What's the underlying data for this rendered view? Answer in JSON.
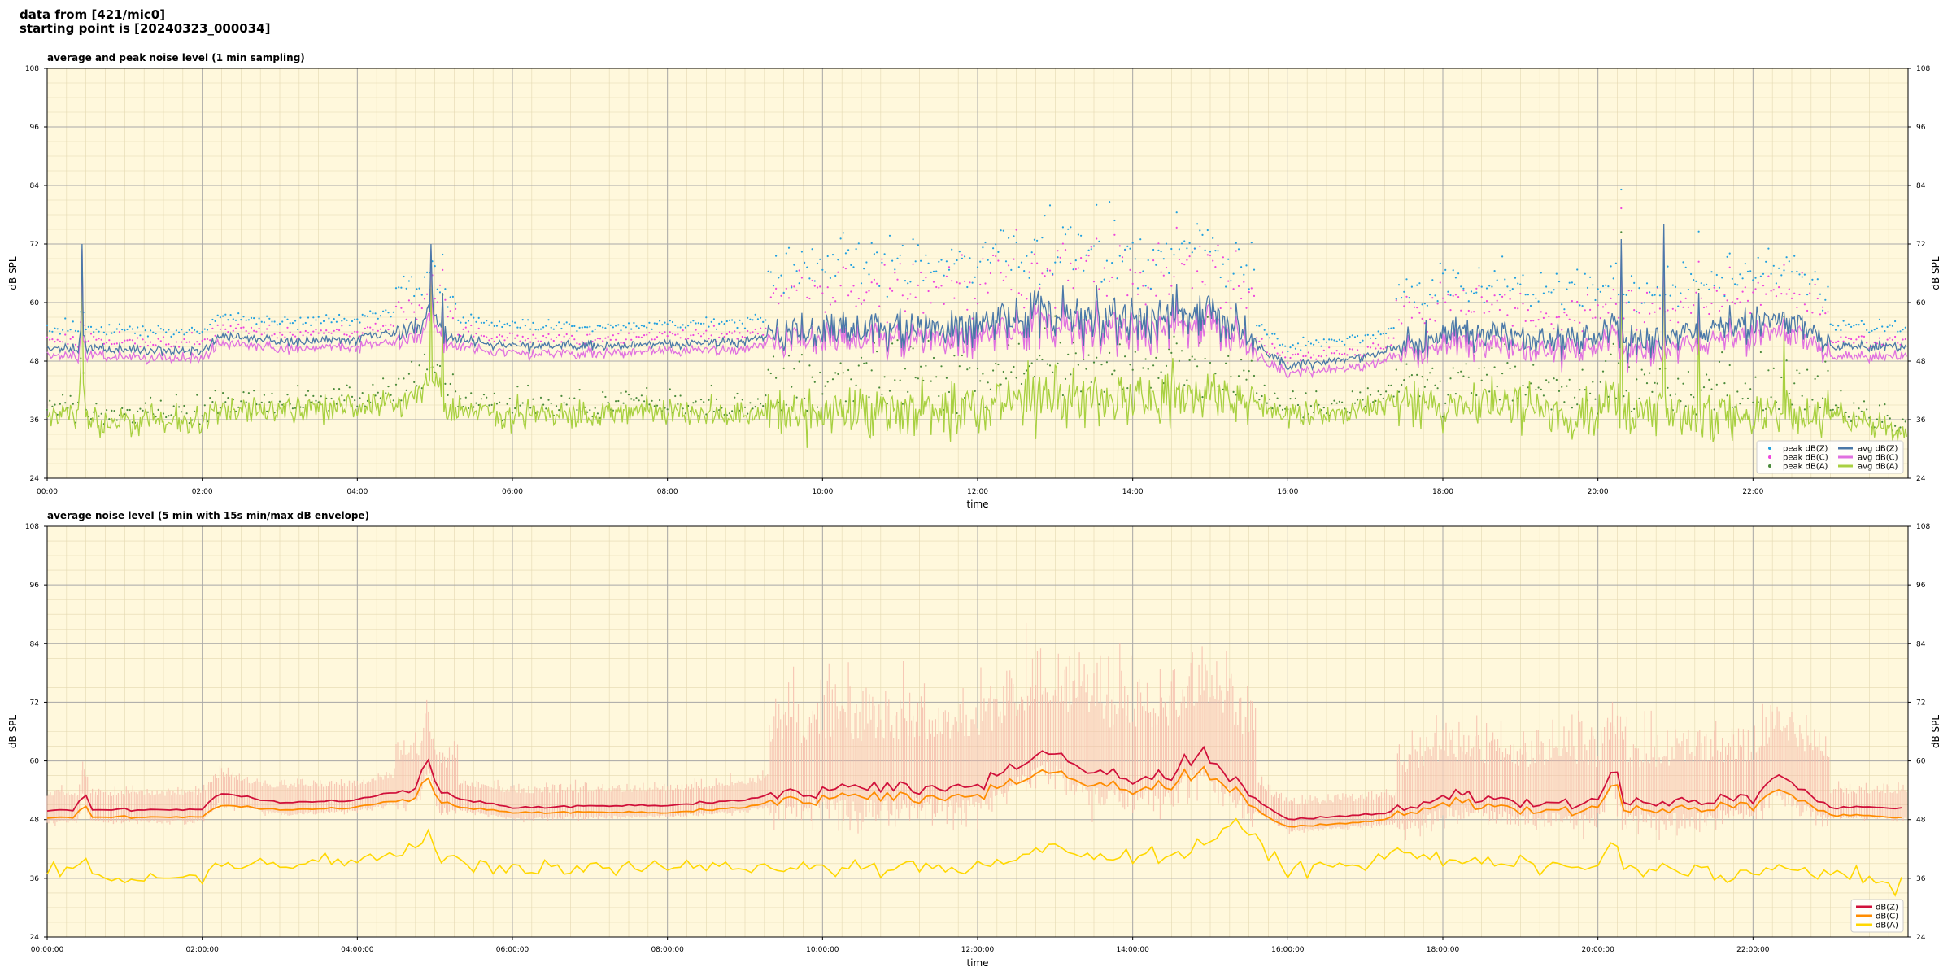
{
  "header": {
    "line1": "data from [421/mic0]",
    "line2": "starting point is [20240323_000034]"
  },
  "colors": {
    "plot_background": "#fff8dc",
    "peak_z": "#1f9fdf",
    "peak_c": "#ee44dd",
    "peak_a": "#4a8a3a",
    "avg_z": "#4a78a8",
    "avg_c": "#e070e0",
    "avg_a": "#a8d040",
    "z5": "#d0103a",
    "c5": "#ff8c00",
    "a5": "#ffd700",
    "envelope": "#f4b8a8"
  },
  "chart_data": [
    {
      "type": "line",
      "title": "average and peak noise level (1 min sampling)",
      "xlabel": "time",
      "ylabel": "dB SPL",
      "xlim_hours": [
        0,
        24
      ],
      "ylim": [
        24,
        108
      ],
      "yticks": [
        24,
        36,
        48,
        60,
        72,
        84,
        96,
        108
      ],
      "xtick_labels": [
        "00:00",
        "02:00",
        "04:00",
        "06:00",
        "08:00",
        "10:00",
        "12:00",
        "14:00",
        "16:00",
        "18:00",
        "20:00",
        "22:00"
      ],
      "grid": true,
      "legend_position": "bottom-right",
      "legend": [
        "peak dB(Z)",
        "peak dB(C)",
        "peak dB(A)",
        "avg dB(Z)",
        "avg dB(C)",
        "avg dB(A)"
      ],
      "series_profile": {
        "x_hours": [
          0,
          0.4,
          0.45,
          0.5,
          2,
          2.2,
          3,
          4,
          4.8,
          4.95,
          5.1,
          6,
          8,
          9,
          9.5,
          11,
          12,
          12.7,
          13.5,
          14.5,
          15,
          15.3,
          15.7,
          16,
          17,
          17.5,
          18,
          19,
          20,
          20.2,
          20.3,
          21,
          22,
          22.5,
          23,
          24
        ],
        "avg_z": [
          50.5,
          50.5,
          56,
          50.5,
          50,
          53,
          52,
          52.5,
          55,
          60,
          53,
          51,
          51.5,
          52,
          54,
          54.5,
          55.5,
          58,
          56.5,
          57,
          58,
          55,
          50,
          47,
          49,
          51,
          54,
          53,
          52,
          56,
          52,
          53,
          56,
          57,
          51,
          51
        ],
        "avg_c": [
          49,
          49,
          55,
          49,
          48.5,
          51.5,
          50.5,
          51,
          53,
          58,
          51.5,
          49.5,
          50,
          50.5,
          52.5,
          52.5,
          53,
          55.5,
          54,
          54.5,
          56,
          53,
          48,
          45.5,
          47,
          49.5,
          52,
          50.5,
          50,
          54,
          50,
          50.5,
          53.5,
          54.5,
          49,
          49
        ],
        "avg_a": [
          37,
          37,
          50,
          36,
          35.5,
          38,
          37.5,
          39,
          40,
          46,
          39,
          37,
          37.5,
          37,
          37.5,
          38,
          38,
          41,
          40,
          41,
          42,
          40,
          39,
          37,
          38,
          40.5,
          39,
          38,
          37,
          42,
          37.5,
          37.5,
          37,
          37,
          37,
          33
        ],
        "peak_z_offset": 8,
        "peak_c_offset": 6,
        "peak_a_offset": 3
      }
    },
    {
      "type": "line",
      "title": "average noise level (5 min with 15s min/max dB envelope)",
      "xlabel": "time",
      "ylabel": "dB SPL",
      "xlim_hours": [
        0,
        24
      ],
      "ylim": [
        24,
        108
      ],
      "yticks": [
        24,
        36,
        48,
        60,
        72,
        84,
        96,
        108
      ],
      "xtick_labels": [
        "00:00:00",
        "02:00:00",
        "04:00:00",
        "06:00:00",
        "08:00:00",
        "10:00:00",
        "12:00:00",
        "14:00:00",
        "16:00:00",
        "18:00:00",
        "20:00:00",
        "22:00:00"
      ],
      "grid": true,
      "legend_position": "bottom-right",
      "legend": [
        "dB(Z)",
        "dB(C)",
        "dB(A)"
      ],
      "series_profile": {
        "x_hours": [
          0,
          0.4,
          0.45,
          0.55,
          2,
          2.2,
          3,
          4,
          4.8,
          4.9,
          5.05,
          6,
          8,
          9,
          9.5,
          11,
          12,
          12.9,
          13.5,
          14.5,
          14.9,
          15.3,
          15.8,
          16,
          17,
          17.5,
          18,
          19,
          20,
          20.2,
          20.35,
          21,
          22,
          22.3,
          23,
          24
        ],
        "z": [
          50,
          50,
          56,
          50,
          50,
          53.5,
          51.5,
          52,
          55,
          62,
          53,
          50.5,
          51,
          52,
          54,
          54.5,
          55,
          62,
          57,
          57,
          62,
          56,
          50,
          48,
          49,
          50,
          53,
          51.5,
          51.5,
          59,
          51,
          51.5,
          52.5,
          57,
          50.5,
          50.5
        ],
        "c": [
          48.5,
          48.5,
          53,
          48.5,
          48.5,
          51,
          50,
          50.5,
          53,
          58,
          51,
          49.5,
          49.5,
          50.5,
          52.5,
          52.5,
          53,
          58,
          54.5,
          55,
          58,
          54,
          48,
          46.5,
          47.5,
          49,
          51.5,
          50,
          50,
          56,
          49.5,
          50,
          51,
          54,
          49,
          48.5
        ],
        "a": [
          37,
          37,
          44,
          36,
          36,
          39,
          38.5,
          40,
          42,
          47,
          40,
          38,
          38.5,
          37.5,
          38,
          38,
          38.5,
          42,
          40.5,
          41,
          43,
          47,
          40,
          38,
          38.5,
          42,
          40,
          38.5,
          38,
          46,
          37.5,
          37.5,
          37,
          38,
          37,
          34
        ],
        "envelope_max_offset": 8,
        "envelope_min_offset": -2
      }
    }
  ]
}
